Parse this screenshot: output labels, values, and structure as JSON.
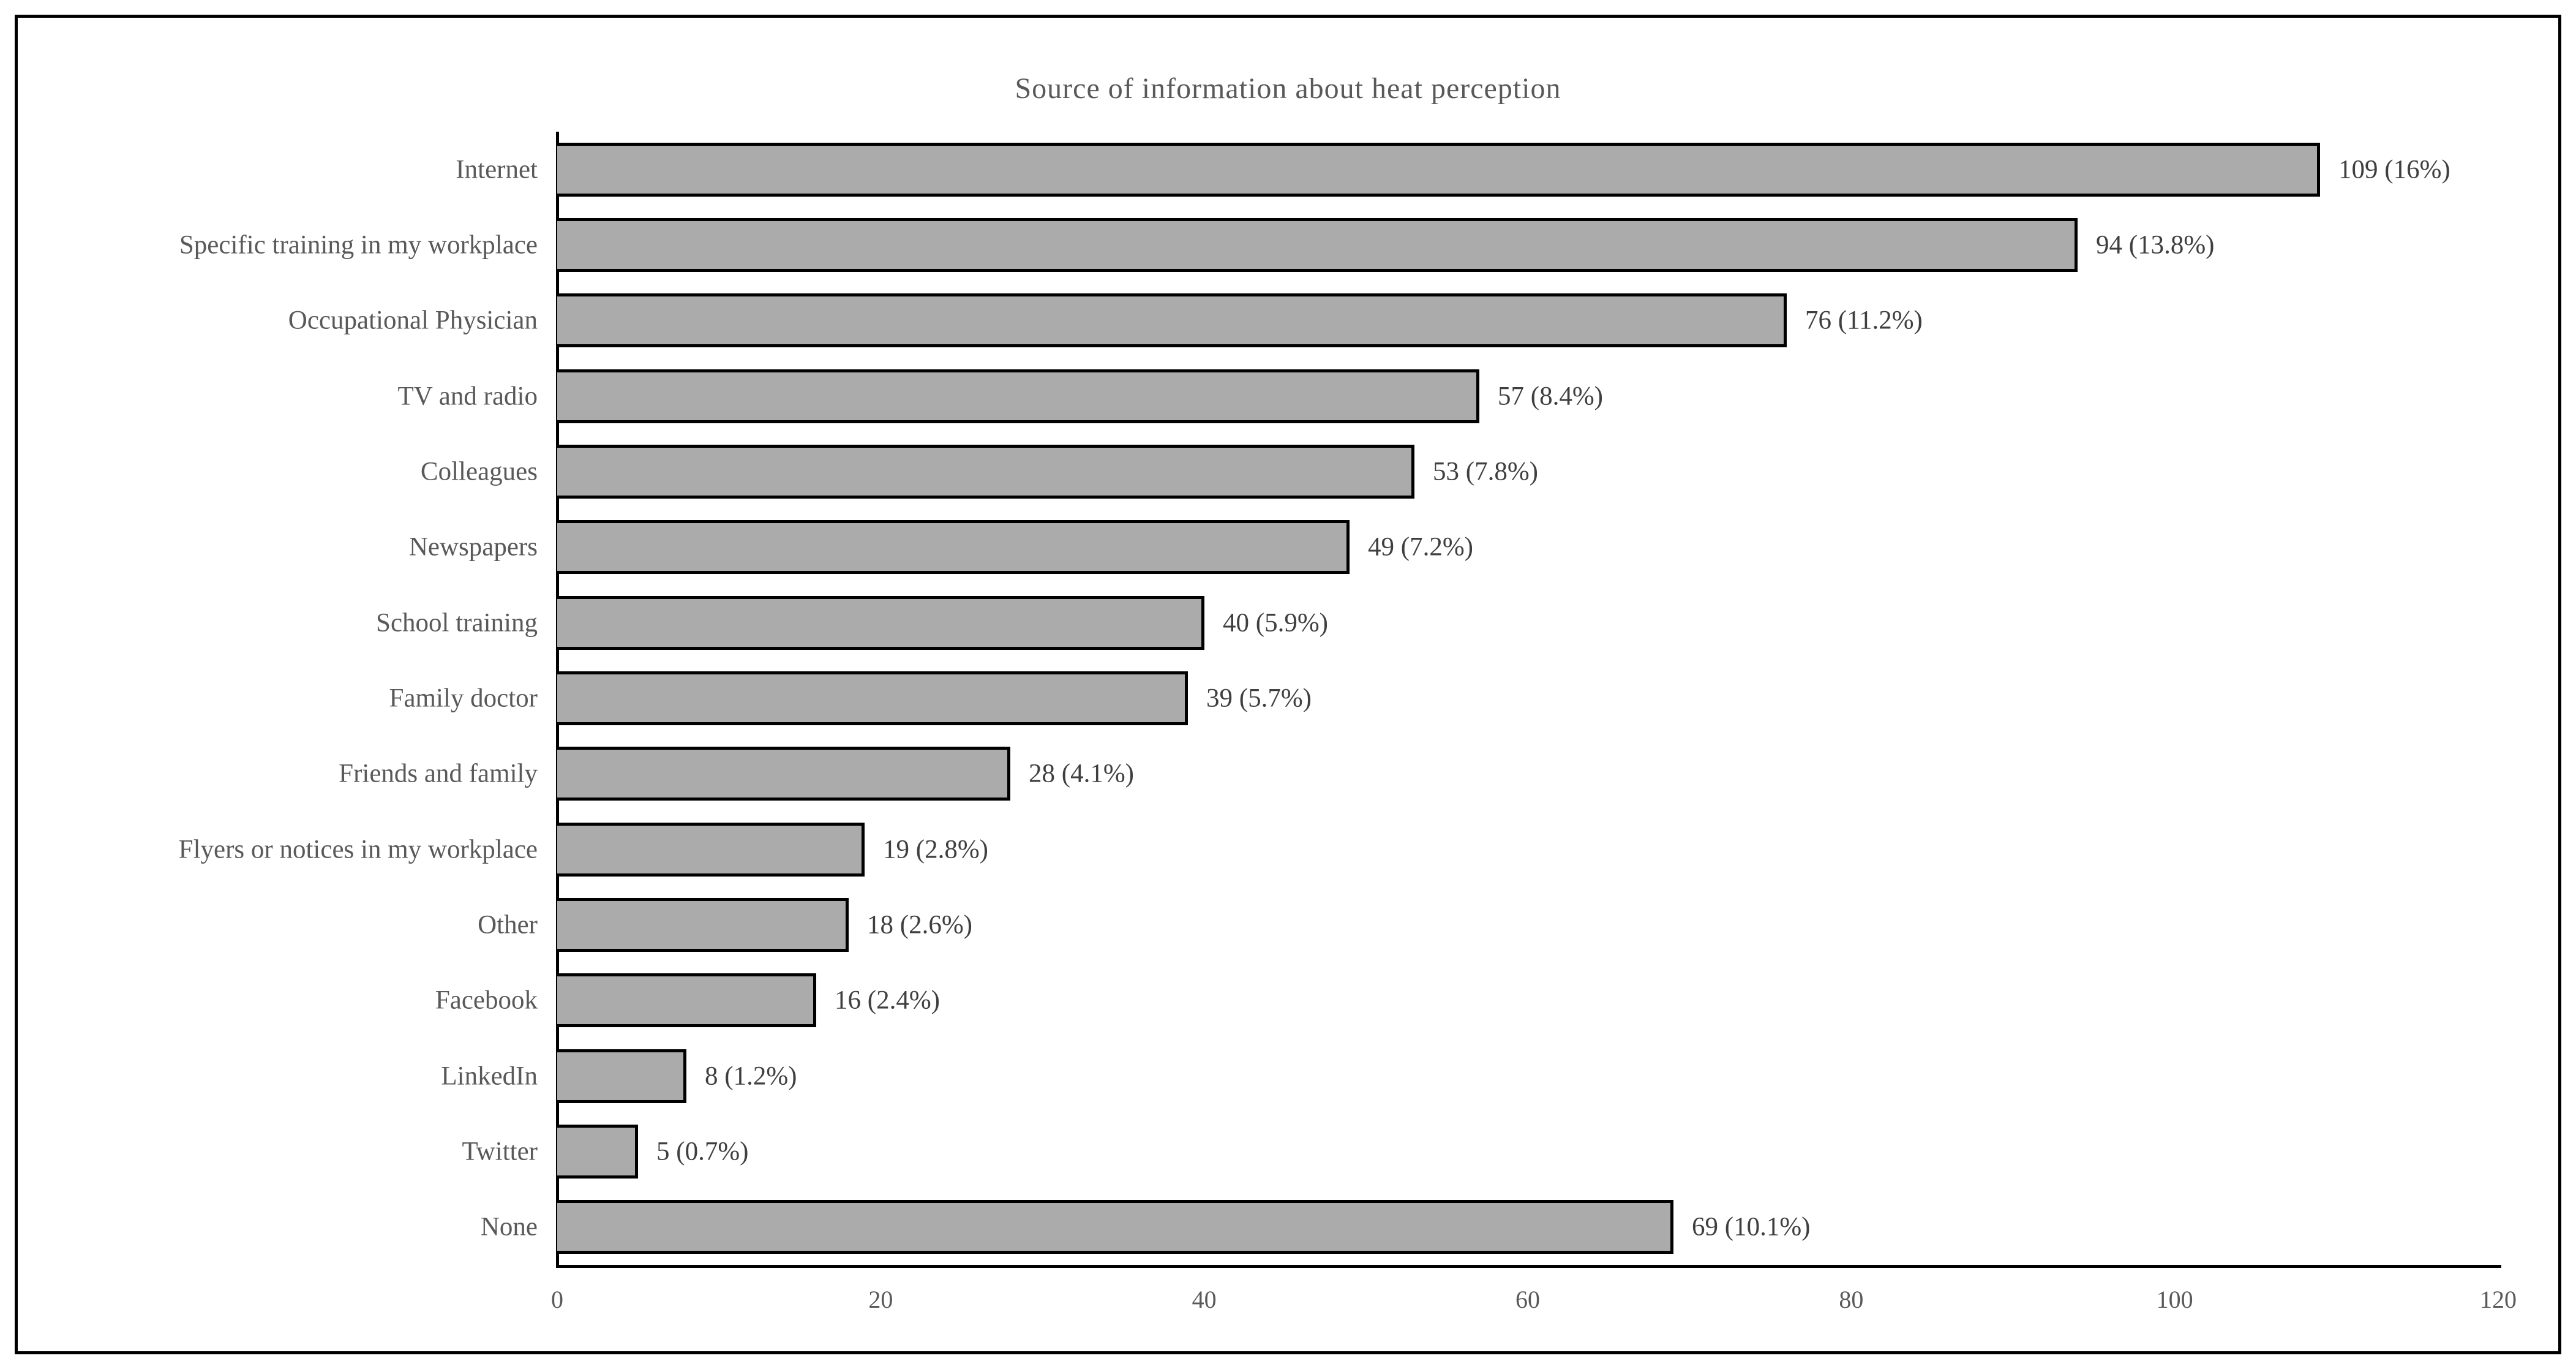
{
  "chart_data": {
    "type": "bar",
    "orientation": "horizontal",
    "title": "Source of information about heat perception",
    "categories": [
      "Internet",
      "Specific training in my workplace",
      "Occupational Physician",
      "TV and radio",
      "Colleagues",
      "Newspapers",
      "School training",
      "Family doctor",
      "Friends and family",
      "Flyers or notices in my workplace",
      "Other",
      "Facebook",
      "LinkedIn",
      "Twitter",
      "None"
    ],
    "values": [
      109,
      94,
      76,
      57,
      53,
      49,
      40,
      39,
      28,
      19,
      18,
      16,
      8,
      5,
      69
    ],
    "value_labels": [
      "109 (16%)",
      "94 (13.8%)",
      "76 (11.2%)",
      "57 (8.4%)",
      "53 (7.8%)",
      "49 (7.2%)",
      "40 (5.9%)",
      "39 (5.7%)",
      "28 (4.1%)",
      "19 (2.8%)",
      "18 (2.6%)",
      "16 (2.4%)",
      "8 (1.2%)",
      "5 (0.7%)",
      "69 (10.1%)"
    ],
    "xlabel": "",
    "ylabel": "",
    "xlim": [
      0,
      120
    ],
    "xticks": [
      0,
      20,
      40,
      60,
      80,
      100,
      120
    ],
    "grid": false,
    "legend": false,
    "colors": {
      "bar_fill": "#ABABAB",
      "bar_border": "#000000",
      "axis_line": "#000000",
      "title_text": "#595959",
      "category_text": "#595959",
      "tick_text": "#595959",
      "value_text": "#3F3F3F",
      "figure_border": "#000000",
      "background": "#FFFFFF"
    }
  }
}
